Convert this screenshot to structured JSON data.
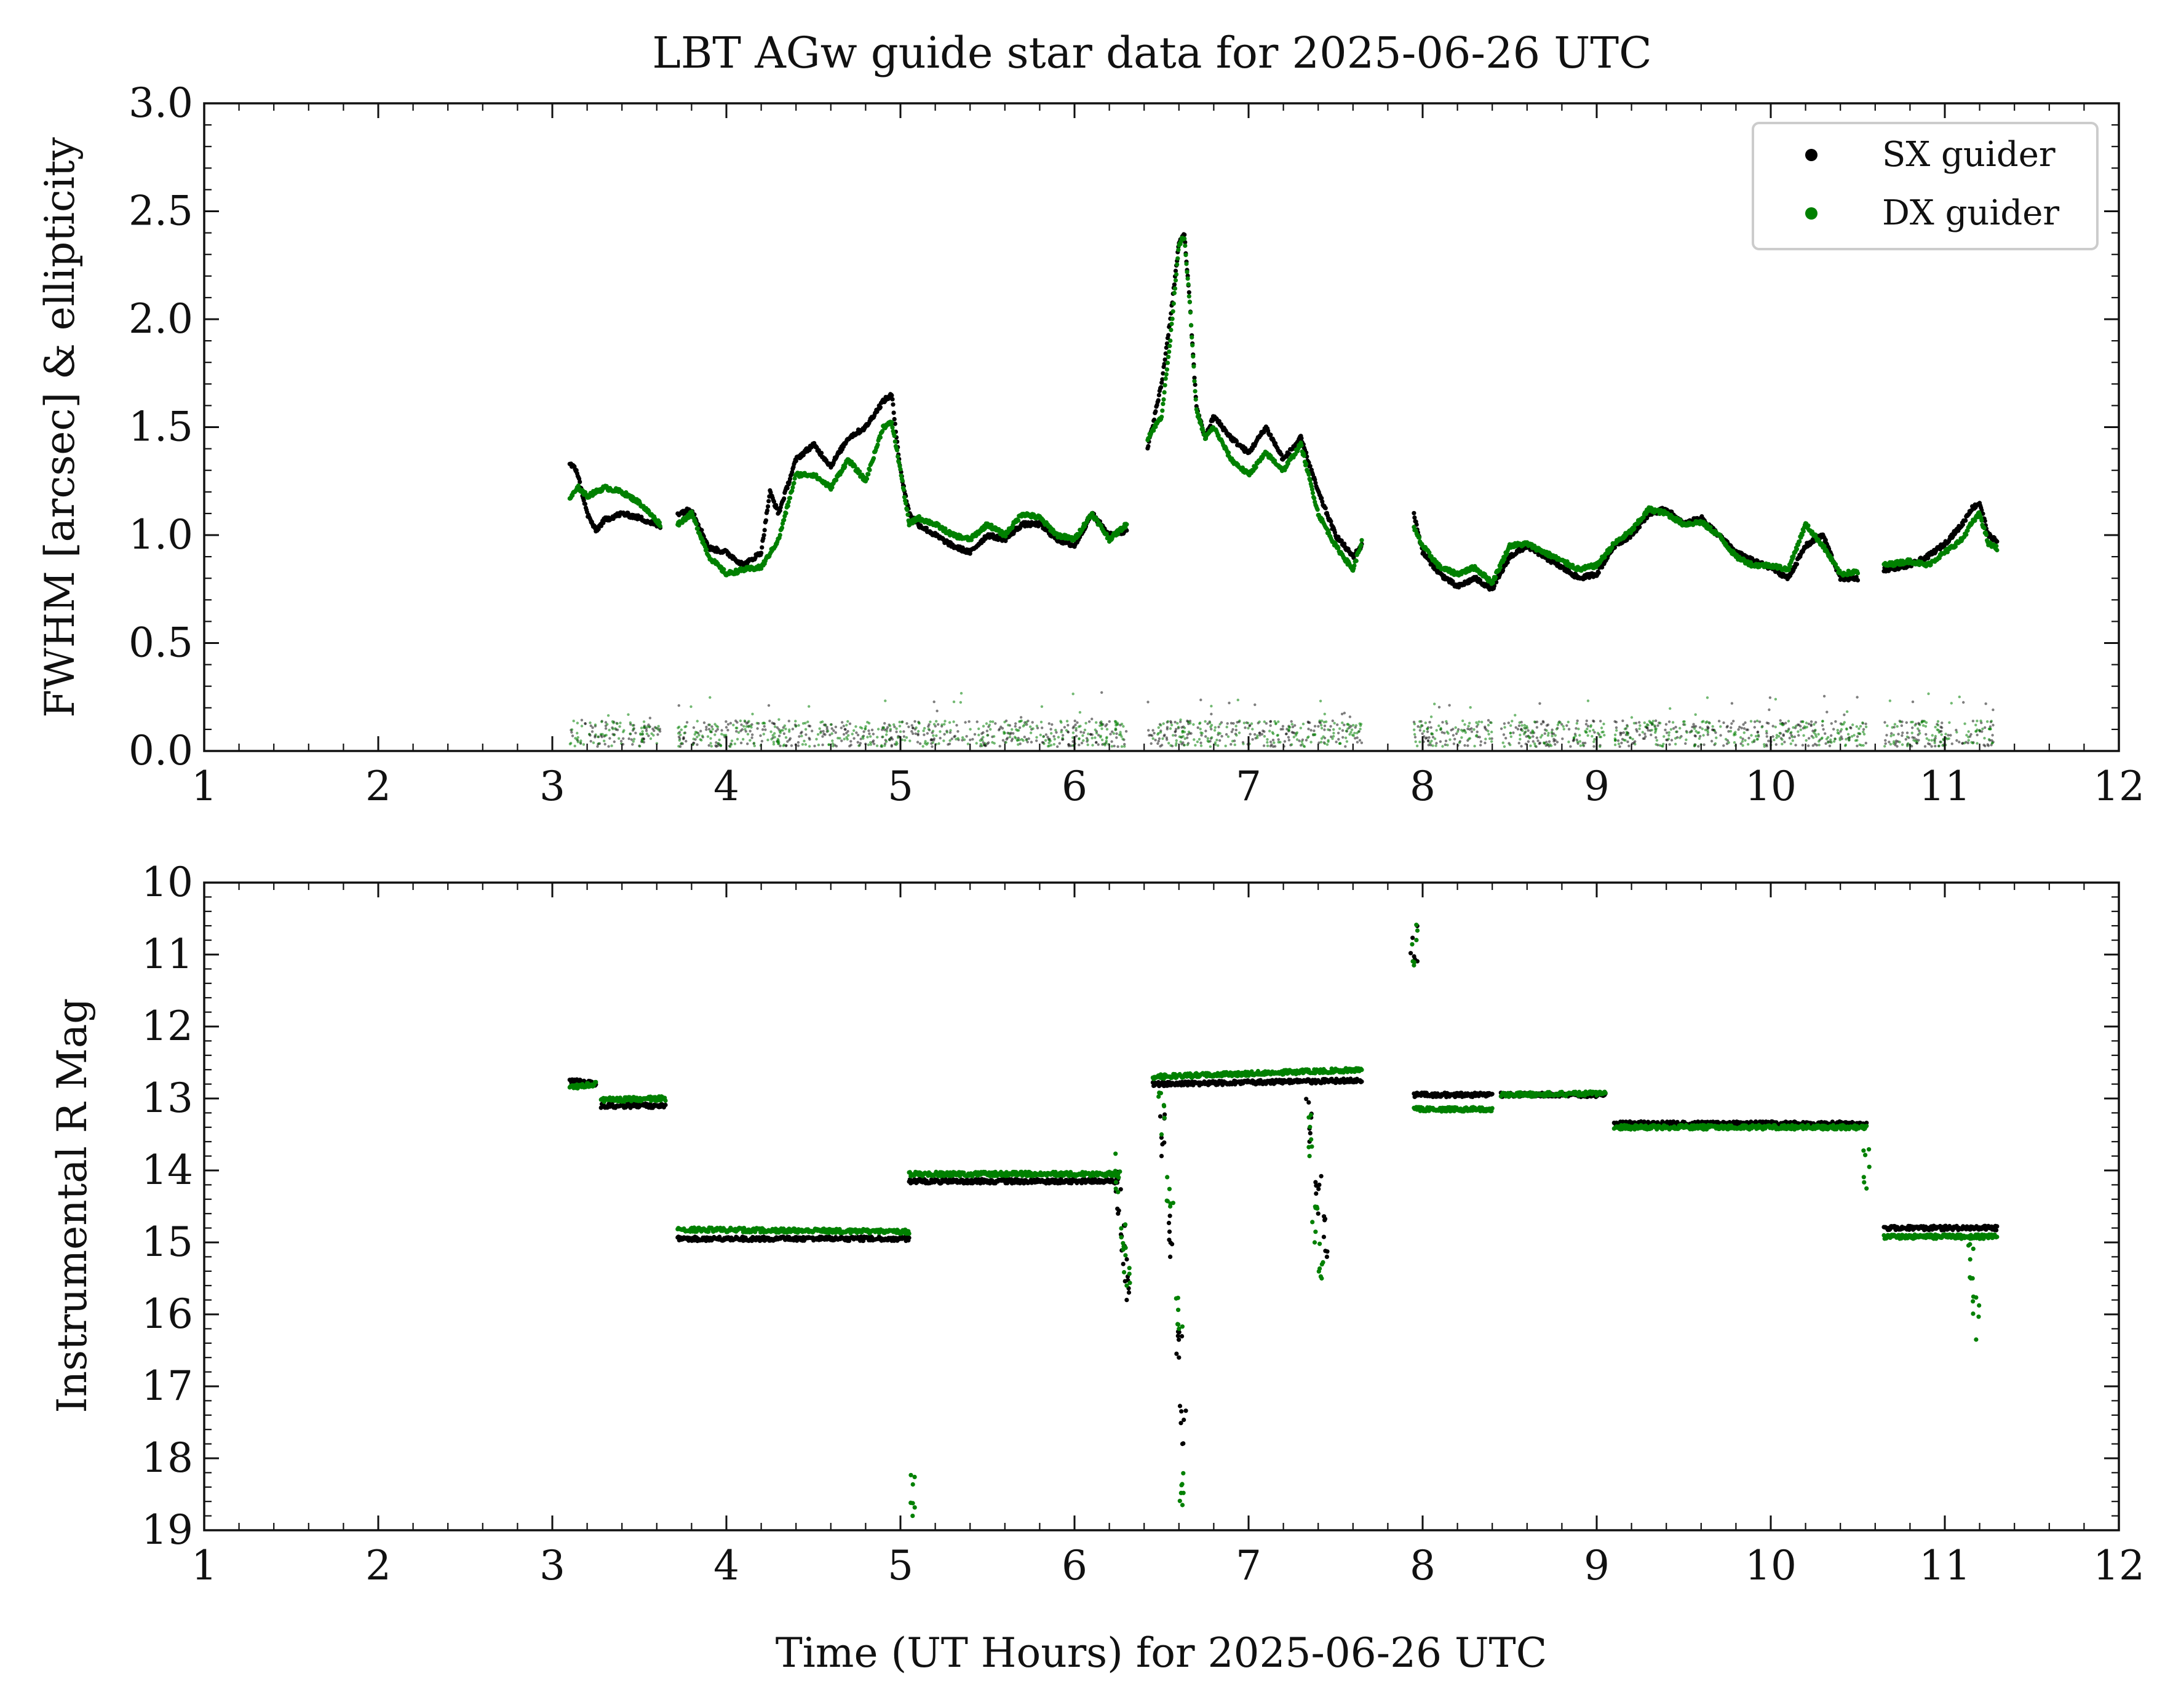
{
  "chart_data": [
    {
      "type": "scatter",
      "title": "LBT AGw guide star data for 2025-06-26 UTC",
      "xlabel": "",
      "ylabel": "FWHM [arcsec] & ellipticity",
      "xlim": [
        1,
        12
      ],
      "ylim": [
        0.0,
        3.0
      ],
      "xticks": [
        "1",
        "2",
        "3",
        "4",
        "5",
        "6",
        "7",
        "8",
        "9",
        "10",
        "11",
        "12"
      ],
      "yticks": [
        "0.0",
        "0.5",
        "1.0",
        "1.5",
        "2.0",
        "2.5",
        "3.0"
      ],
      "legend": {
        "placement": "top-right",
        "entries": [
          "SX guider",
          "DX guider"
        ]
      },
      "colors": {
        "SX guider": "#000000",
        "DX guider": "#008000"
      },
      "series": [
        {
          "name": "SX guider",
          "fwhm_segments": [
            {
              "x": [
                3.1,
                3.14,
                3.2,
                3.25,
                3.3,
                3.4,
                3.5,
                3.62
              ],
              "y": [
                1.33,
                1.3,
                1.1,
                1.02,
                1.07,
                1.1,
                1.08,
                1.04
              ]
            },
            {
              "x": [
                3.72,
                3.8,
                3.9,
                4.0,
                4.1,
                4.2,
                4.25,
                4.3,
                4.4,
                4.5,
                4.6,
                4.7,
                4.8,
                4.9,
                4.95,
                5.0,
                5.05
              ],
              "y": [
                1.1,
                1.12,
                0.94,
                0.92,
                0.86,
                0.92,
                1.2,
                1.1,
                1.35,
                1.42,
                1.32,
                1.45,
                1.5,
                1.62,
                1.65,
                1.3,
                1.1
              ]
            },
            {
              "x": [
                5.05,
                5.1,
                5.2,
                5.3,
                5.4,
                5.5,
                5.6,
                5.7,
                5.8,
                5.9,
                6.0,
                6.1,
                6.2,
                6.3
              ],
              "y": [
                1.1,
                1.05,
                1.0,
                0.95,
                0.92,
                1.0,
                0.98,
                1.05,
                1.05,
                0.98,
                0.95,
                1.1,
                1.0,
                1.02
              ]
            },
            {
              "x": [
                6.42,
                6.5,
                6.55,
                6.6,
                6.63,
                6.66,
                6.7,
                6.75,
                6.8,
                6.9,
                7.0,
                7.1,
                7.2,
                7.3,
                7.4,
                7.5,
                7.6,
                7.65
              ],
              "y": [
                1.4,
                1.7,
                2.0,
                2.35,
                2.4,
                2.1,
                1.6,
                1.45,
                1.55,
                1.45,
                1.38,
                1.5,
                1.35,
                1.45,
                1.2,
                1.0,
                0.9,
                0.95
              ]
            },
            {
              "x": [
                7.95,
                8.0,
                8.1,
                8.2,
                8.3,
                8.4,
                8.5,
                8.6,
                8.7,
                8.8,
                8.9,
                9.0,
                9.1,
                9.2,
                9.3,
                9.4,
                9.5,
                9.6,
                9.7,
                9.8,
                9.9,
                10.0,
                10.1,
                10.2,
                10.3,
                10.4,
                10.5
              ],
              "y": [
                1.1,
                0.92,
                0.82,
                0.76,
                0.8,
                0.75,
                0.9,
                0.95,
                0.9,
                0.85,
                0.8,
                0.82,
                0.95,
                1.0,
                1.1,
                1.12,
                1.05,
                1.08,
                1.0,
                0.92,
                0.88,
                0.85,
                0.8,
                0.95,
                1.0,
                0.8,
                0.8
              ]
            },
            {
              "x": [
                10.65,
                10.8,
                10.9,
                11.0,
                11.1,
                11.15,
                11.2,
                11.25,
                11.3
              ],
              "y": [
                0.84,
                0.86,
                0.9,
                0.96,
                1.05,
                1.12,
                1.15,
                1.0,
                0.97
              ]
            }
          ],
          "rmag_segments": [
            {
              "x": [
                3.1,
                3.25
              ],
              "y": [
                12.75,
                12.8
              ]
            },
            {
              "x": [
                3.28,
                3.65
              ],
              "y": [
                13.1,
                13.1
              ]
            },
            {
              "x": [
                3.72,
                5.05
              ],
              "y": [
                14.95,
                14.95
              ]
            },
            {
              "x": [
                5.05,
                6.25
              ],
              "y": [
                14.15,
                14.15
              ]
            },
            {
              "x": [
                6.45,
                7.65
              ],
              "y": [
                12.8,
                12.75
              ]
            },
            {
              "x": [
                7.95,
                8.4
              ],
              "y": [
                12.95,
                12.95
              ]
            },
            {
              "x": [
                8.45,
                9.05
              ],
              "y": [
                12.95,
                12.95
              ]
            },
            {
              "x": [
                9.1,
                10.55
              ],
              "y": [
                13.35,
                13.35
              ]
            },
            {
              "x": [
                10.65,
                11.3
              ],
              "y": [
                14.8,
                14.8
              ]
            }
          ],
          "rmag_dips": [
            {
              "x": [
                6.25,
                6.28,
                6.3
              ],
              "y": [
                14.6,
                15.3,
                15.8
              ]
            },
            {
              "x": [
                6.5,
                6.55,
                6.6,
                6.62
              ],
              "y": [
                13.8,
                15.2,
                16.6,
                17.8
              ]
            },
            {
              "x": [
                7.35,
                7.4,
                7.45
              ],
              "y": [
                13.6,
                14.6,
                15.2
              ]
            },
            {
              "x": [
                7.95
              ],
              "y": [
                11.1
              ]
            }
          ]
        },
        {
          "name": "DX guider",
          "fwhm_segments": [
            {
              "x": [
                3.1,
                3.15,
                3.2,
                3.3,
                3.4,
                3.5,
                3.62
              ],
              "y": [
                1.17,
                1.22,
                1.18,
                1.22,
                1.2,
                1.15,
                1.05
              ]
            },
            {
              "x": [
                3.72,
                3.8,
                3.9,
                4.0,
                4.1,
                4.2,
                4.3,
                4.4,
                4.5,
                4.6,
                4.7,
                4.8,
                4.9,
                4.95,
                5.0,
                5.05
              ],
              "y": [
                1.05,
                1.1,
                0.9,
                0.82,
                0.84,
                0.85,
                0.98,
                1.28,
                1.28,
                1.22,
                1.35,
                1.25,
                1.5,
                1.52,
                1.3,
                1.05
              ]
            },
            {
              "x": [
                5.05,
                5.1,
                5.2,
                5.3,
                5.4,
                5.5,
                5.6,
                5.7,
                5.8,
                5.9,
                6.0,
                6.1,
                6.2,
                6.3
              ],
              "y": [
                1.05,
                1.08,
                1.05,
                1.0,
                0.98,
                1.05,
                1.0,
                1.1,
                1.08,
                1.0,
                0.98,
                1.1,
                0.98,
                1.05
              ]
            },
            {
              "x": [
                6.42,
                6.5,
                6.55,
                6.6,
                6.63,
                6.66,
                6.7,
                6.75,
                6.8,
                6.9,
                7.0,
                7.1,
                7.2,
                7.3,
                7.4,
                7.5,
                7.6,
                7.65
              ],
              "y": [
                1.45,
                1.55,
                1.9,
                2.35,
                2.38,
                2.1,
                1.58,
                1.45,
                1.5,
                1.35,
                1.28,
                1.38,
                1.3,
                1.42,
                1.1,
                0.95,
                0.84,
                0.97
              ]
            },
            {
              "x": [
                7.95,
                8.0,
                8.1,
                8.2,
                8.3,
                8.4,
                8.5,
                8.6,
                8.7,
                8.8,
                8.9,
                9.0,
                9.1,
                9.2,
                9.3,
                9.4,
                9.5,
                9.6,
                9.7,
                9.8,
                9.9,
                10.0,
                10.1,
                10.2,
                10.3,
                10.4,
                10.5
              ],
              "y": [
                1.03,
                0.95,
                0.85,
                0.82,
                0.85,
                0.78,
                0.95,
                0.96,
                0.92,
                0.88,
                0.84,
                0.86,
                0.96,
                1.02,
                1.12,
                1.1,
                1.05,
                1.06,
                1.0,
                0.9,
                0.86,
                0.86,
                0.84,
                1.05,
                0.95,
                0.82,
                0.83
              ]
            },
            {
              "x": [
                10.65,
                10.8,
                10.9,
                11.0,
                11.1,
                11.15,
                11.2,
                11.25,
                11.3
              ],
              "y": [
                0.86,
                0.88,
                0.86,
                0.92,
                0.98,
                1.05,
                1.1,
                0.96,
                0.94
              ]
            }
          ],
          "rmag_segments": [
            {
              "x": [
                3.1,
                3.25
              ],
              "y": [
                12.85,
                12.8
              ]
            },
            {
              "x": [
                3.28,
                3.65
              ],
              "y": [
                13.02,
                13.0
              ]
            },
            {
              "x": [
                3.72,
                5.05
              ],
              "y": [
                14.82,
                14.85
              ]
            },
            {
              "x": [
                5.05,
                6.25
              ],
              "y": [
                14.05,
                14.05
              ]
            },
            {
              "x": [
                6.45,
                7.65
              ],
              "y": [
                12.7,
                12.6
              ]
            },
            {
              "x": [
                7.95,
                8.4
              ],
              "y": [
                13.15,
                13.15
              ]
            },
            {
              "x": [
                8.45,
                9.05
              ],
              "y": [
                12.95,
                12.93
              ]
            },
            {
              "x": [
                9.1,
                10.55
              ],
              "y": [
                13.4,
                13.4
              ]
            },
            {
              "x": [
                10.65,
                11.3
              ],
              "y": [
                14.92,
                14.92
              ]
            }
          ],
          "rmag_dips": [
            {
              "x": [
                6.25,
                6.28,
                6.3
              ],
              "y": [
                14.3,
                15.1,
                15.6
              ]
            },
            {
              "x": [
                6.5,
                6.55,
                6.6,
                6.62
              ],
              "y": [
                13.5,
                14.5,
                16.2,
                18.65
              ]
            },
            {
              "x": [
                7.35,
                7.38,
                7.42
              ],
              "y": [
                13.8,
                15.0,
                15.5
              ]
            },
            {
              "x": [
                7.95
              ],
              "y": [
                11.15
              ]
            },
            {
              "x": [
                5.07
              ],
              "y": [
                18.8
              ]
            },
            {
              "x": [
                10.55
              ],
              "y": [
                14.25
              ]
            },
            {
              "x": [
                11.15,
                11.18
              ],
              "y": [
                15.5,
                16.35
              ]
            }
          ]
        }
      ],
      "ellipticity": {
        "note": "Scattered points near 0.0-0.3 for both guiders across the observed time ranges",
        "ranges": [
          [
            3.1,
            3.62
          ],
          [
            3.72,
            5.05
          ],
          [
            5.05,
            6.3
          ],
          [
            6.42,
            7.65
          ],
          [
            7.95,
            8.4
          ],
          [
            8.45,
            9.05
          ],
          [
            9.1,
            10.55
          ],
          [
            10.65,
            11.3
          ]
        ],
        "y_range": [
          0.0,
          0.3
        ]
      }
    },
    {
      "type": "scatter",
      "title": "",
      "xlabel": "Time (UT Hours) for 2025-06-26 UTC",
      "ylabel": "Instrumental R Mag",
      "xlim": [
        1,
        12
      ],
      "ylim": [
        19,
        10
      ],
      "xticks": [
        "1",
        "2",
        "3",
        "4",
        "5",
        "6",
        "7",
        "8",
        "9",
        "10",
        "11",
        "12"
      ],
      "yticks": [
        "10",
        "11",
        "12",
        "13",
        "14",
        "15",
        "16",
        "17",
        "18",
        "19"
      ],
      "series_ref": "Same SX/DX guider series as above (rmag_segments, rmag_dips)"
    }
  ]
}
